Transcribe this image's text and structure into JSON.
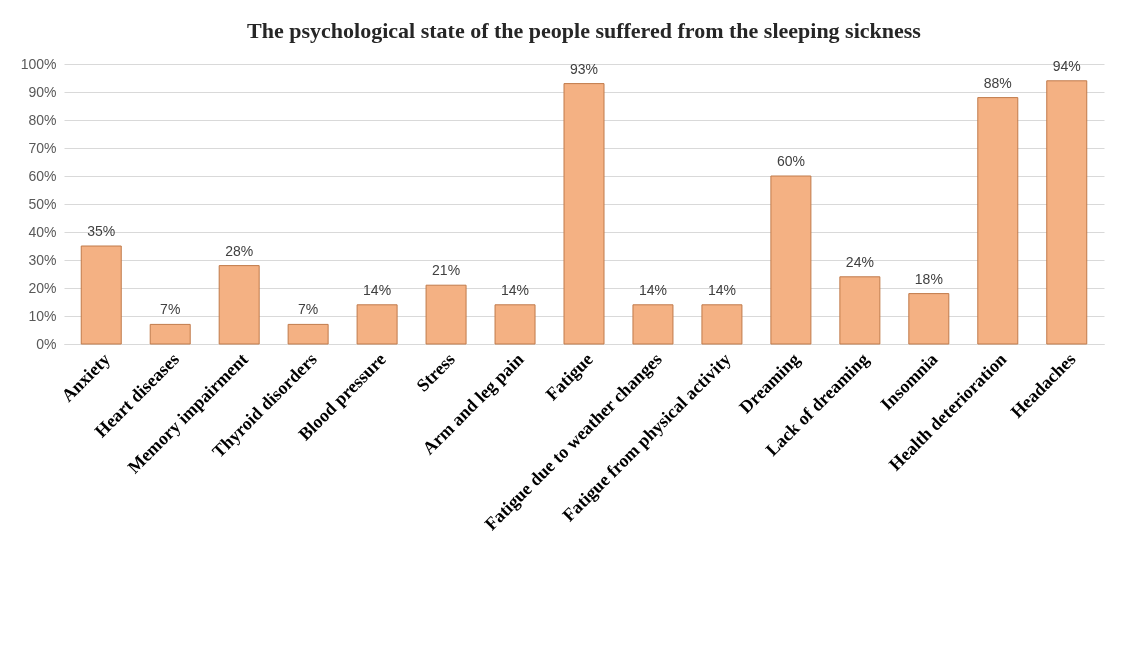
{
  "chart_data": {
    "type": "bar",
    "title": "The psychological state of the people suffered from the sleeping sickness",
    "categories": [
      "Anxiety",
      "Heart diseases",
      "Memory impairment",
      "Thyroid disorders",
      "Blood pressure",
      "Stress",
      "Arm and leg pain",
      "Fatigue",
      "Fatigue due to weather changes",
      "Fatigue from physical activity",
      "Dreaming",
      "Lack of dreaming",
      "Insomnia",
      "Health deterioration",
      "Headaches"
    ],
    "values": [
      35,
      7,
      28,
      7,
      14,
      21,
      14,
      93,
      14,
      14,
      60,
      24,
      18,
      88,
      94
    ],
    "value_labels": [
      "35%",
      "7%",
      "28%",
      "7%",
      "14%",
      "21%",
      "14%",
      "93%",
      "14%",
      "14%",
      "60%",
      "24%",
      "18%",
      "88%",
      "94%"
    ],
    "color": "#f4b183",
    "ylim": [
      0,
      100
    ],
    "yticks": [
      {
        "value": 0,
        "label": "0%"
      },
      {
        "value": 10,
        "label": "10%"
      },
      {
        "value": 20,
        "label": "20%"
      },
      {
        "value": 30,
        "label": "30%"
      },
      {
        "value": 40,
        "label": "40%"
      },
      {
        "value": 50,
        "label": "50%"
      },
      {
        "value": 60,
        "label": "60%"
      },
      {
        "value": 70,
        "label": "70%"
      },
      {
        "value": 80,
        "label": "80%"
      },
      {
        "value": 90,
        "label": "90%"
      },
      {
        "value": 100,
        "label": "100%"
      }
    ],
    "grid": "y"
  }
}
